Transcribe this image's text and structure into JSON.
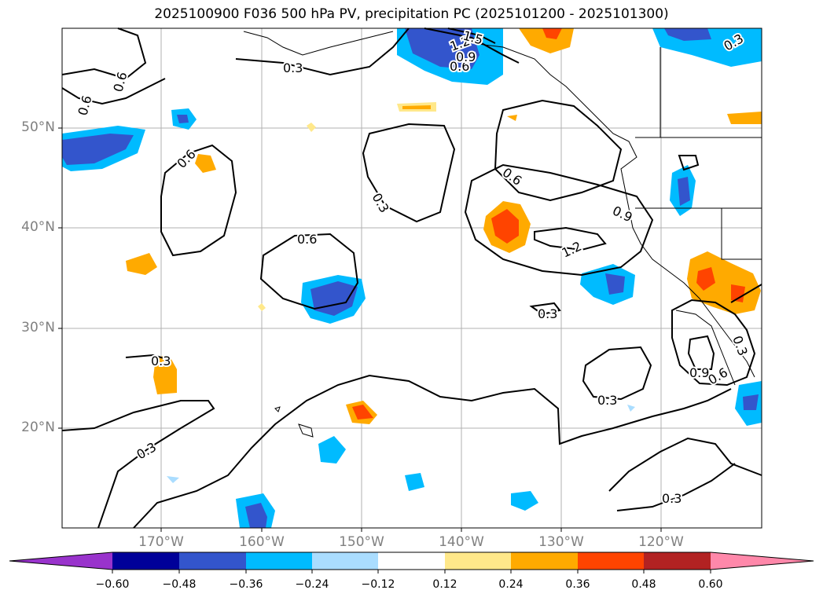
{
  "title": "2025100900 F036 500 hPa PV, precipitation PC (2025101200 - 2025101300)",
  "latitude_labels": [
    "50°N",
    "40°N",
    "30°N",
    "20°N"
  ],
  "longitude_labels": [
    "170°W",
    "160°W",
    "150°W",
    "140°W",
    "130°W",
    "120°W"
  ],
  "colorbar": {
    "ticks": [
      "−0.60",
      "−0.48",
      "−0.36",
      "−0.24",
      "−0.12",
      "0.12",
      "0.24",
      "0.36",
      "0.48",
      "0.60"
    ],
    "colors": [
      "#9933cc",
      "#000099",
      "#3355cc",
      "#00bbff",
      "#aaddff",
      "#ffffff",
      "#ffe88a",
      "#ffaa00",
      "#ff4400",
      "#b22222",
      "#ff88aa"
    ]
  },
  "contour_labels": [
    "0.3",
    "0.3",
    "0.3",
    "0.3",
    "0.3",
    "0.3",
    "0.3",
    "0.3",
    "0.6",
    "0.6",
    "0.6",
    "0.6",
    "0.6",
    "0.6",
    "0.6",
    "0.9",
    "0.9",
    "0.9",
    "1.2",
    "1.2",
    "1.5",
    "0.3"
  ]
}
